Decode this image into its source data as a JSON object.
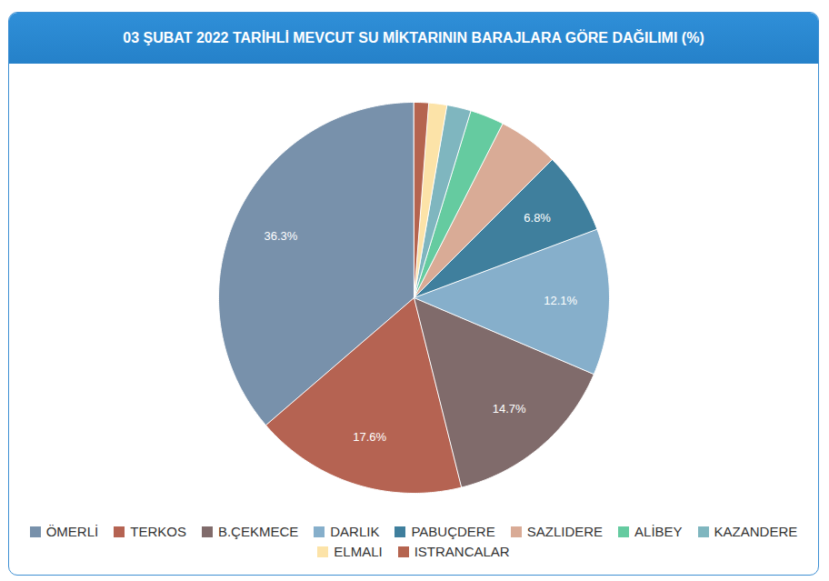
{
  "chart_data": {
    "type": "pie",
    "title": "03 ŞUBAT 2022 TARİHLİ MEVCUT SU MİKTARININ BARAJLARA GÖRE DAĞILIMI (%)",
    "categories": [
      "ÖMERLİ",
      "TERKOS",
      "B.ÇEKMECE",
      "DARLIK",
      "PABUÇDERE",
      "SAZLIDERE",
      "ALİBEY",
      "KAZANDERE",
      "ELMALI",
      "ISTRANCALAR"
    ],
    "values": [
      36.3,
      17.6,
      14.7,
      12.1,
      6.8,
      5.0,
      2.8,
      2.0,
      1.5,
      1.2
    ],
    "value_labels": [
      "36.3%",
      "17.6%",
      "14.7%",
      "12.1%",
      "6.8%",
      null,
      null,
      null,
      null,
      null
    ],
    "colors": [
      "#7891ab",
      "#b56352",
      "#806b6b",
      "#86afcb",
      "#3f7f9d",
      "#d9ab96",
      "#65cba0",
      "#7fb6bf",
      "#fce3a8",
      "#b5644f"
    ],
    "data_labels": true,
    "legend": "bottom"
  }
}
